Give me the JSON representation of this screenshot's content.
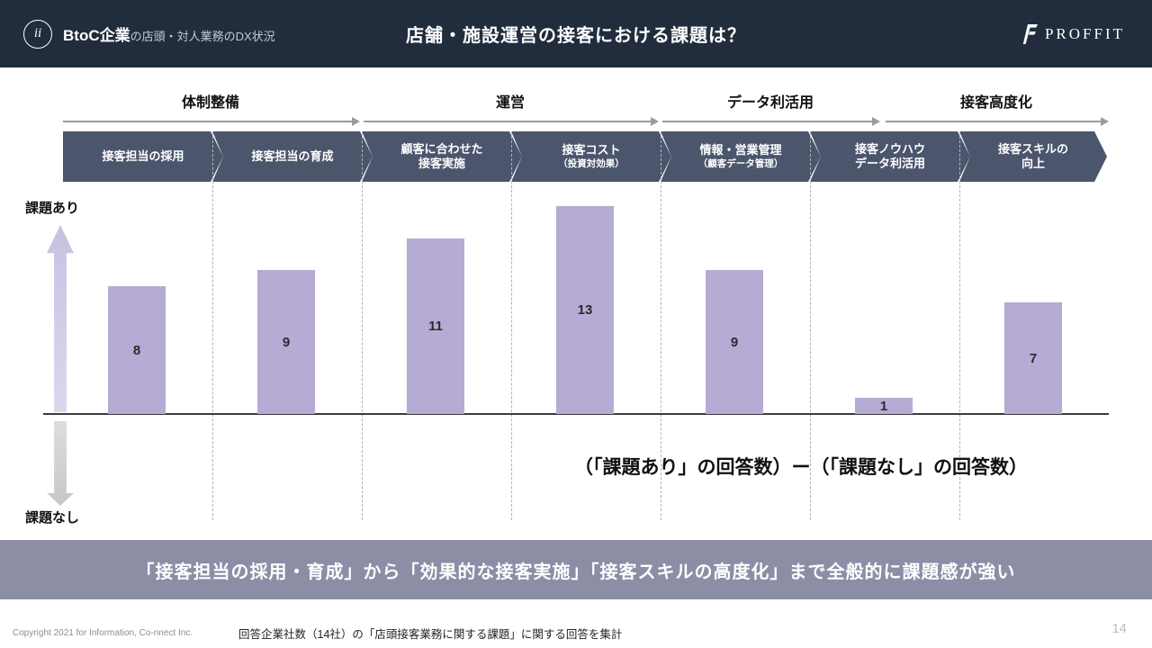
{
  "header": {
    "badge": "ii",
    "title_bold": "BtoC企業",
    "title_rest": "の店頭・対人業務のDX状況",
    "center_title": "店舗・施設運営の接客における課題は？",
    "logo_text": "PROFFIT"
  },
  "phases": [
    {
      "label": "体制整備"
    },
    {
      "label": "運営"
    },
    {
      "label": "データ利活用"
    },
    {
      "label": "接客高度化"
    }
  ],
  "steps": [
    {
      "line1": "接客担当の採用",
      "line2": ""
    },
    {
      "line1": "接客担当の育成",
      "line2": ""
    },
    {
      "line1": "顧客に合わせた",
      "line2": "接客実施"
    },
    {
      "line1": "接客コスト",
      "line2": "（投資対効果）"
    },
    {
      "line1": "情報・営業管理",
      "line2": "（顧客データ管理）"
    },
    {
      "line1": "接客ノウハウ",
      "line2": "データ利活用"
    },
    {
      "line1": "接客スキルの",
      "line2": "向上"
    }
  ],
  "chart_data": {
    "type": "bar",
    "categories": [
      "接客担当の採用",
      "接客担当の育成",
      "顧客に合わせた接客実施",
      "接客コスト（投資対効果）",
      "情報・営業管理（顧客データ管理）",
      "接客ノウハウデータ利活用",
      "接客スキルの向上"
    ],
    "values": [
      8,
      9,
      11,
      13,
      9,
      1,
      7
    ],
    "ylim": [
      0,
      13
    ],
    "axis_positive_label": "課題あり",
    "axis_negative_label": "課題なし",
    "formula_note": "（「課題あり」の回答数）ー（「課題なし」の回答数）",
    "bar_color": "#b5abd4"
  },
  "banner": {
    "text": "「接客担当の採用・育成」から「効果的な接客実施」「接客スキルの高度化」まで全般的に課題感が強い"
  },
  "footer": {
    "copyright": "Copyright 2021 for Information, Co-nnect Inc.",
    "note": "回答企業社数（14社）の「店頭接客業務に関する課題」に関する回答を集計",
    "page": "14"
  }
}
